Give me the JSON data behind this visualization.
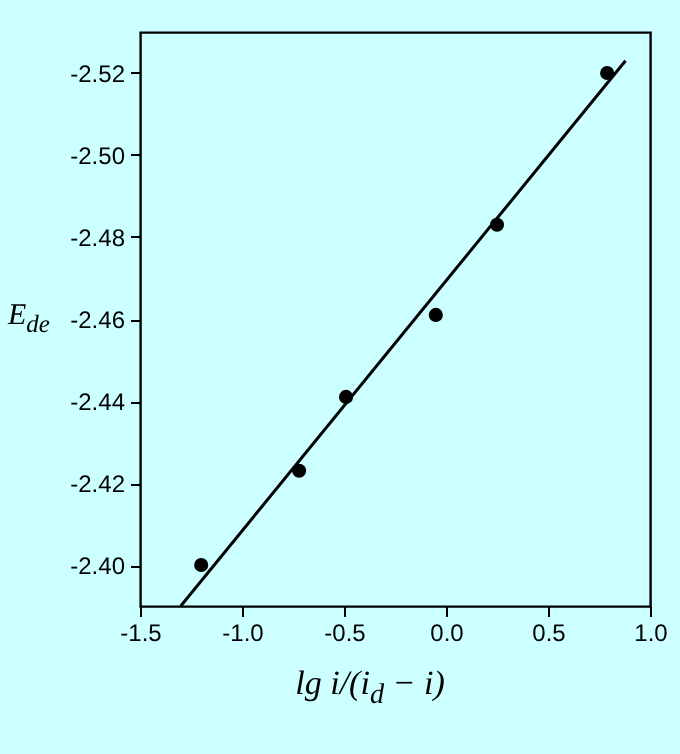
{
  "chart_data": {
    "type": "scatter",
    "xlabel": "lg i/(i$_{d}$ − i)",
    "ylabel": "E$_{de}$",
    "series": [
      {
        "color": "#000000",
        "marker": "circle",
        "x": [
          -1.2,
          -0.72,
          -0.49,
          -0.05,
          0.25,
          0.79
        ],
        "values": [
          -2.4,
          -2.423,
          -2.441,
          -2.461,
          -2.483,
          -2.52
        ]
      },
      {
        "type": "line",
        "color": "#000000",
        "line_style": "solid",
        "x": [
          -1.3,
          0.88
        ],
        "values": [
          -2.39,
          -2.523
        ]
      }
    ],
    "xlim": [
      -1.5,
      1.0
    ],
    "ylim": [
      -2.39,
      -2.53
    ],
    "xticks": [
      {
        "value": -1.5,
        "label": "-1.5"
      },
      {
        "value": -1.0,
        "label": "-1.0"
      },
      {
        "value": -0.5,
        "label": "-0.5"
      },
      {
        "value": 0,
        "label": "0.0"
      },
      {
        "value": 0.5,
        "label": "0.5"
      },
      {
        "value": 1.0,
        "label": "1.0"
      }
    ],
    "yticks": [
      {
        "value": -2.4,
        "label": "-2.40"
      },
      {
        "value": -2.42,
        "label": "-2.42"
      },
      {
        "value": -2.44,
        "label": "-2.44"
      },
      {
        "value": -2.46,
        "label": "-2.46"
      },
      {
        "value": -2.48,
        "label": "-2.48"
      },
      {
        "value": -2.5,
        "label": "-2.50"
      },
      {
        "value": -2.52,
        "label": "-2.52"
      }
    ],
    "grid": false
  }
}
